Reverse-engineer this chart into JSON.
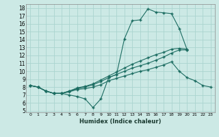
{
  "xlabel": "Humidex (Indice chaleur)",
  "bg_color": "#cce9e5",
  "grid_color": "#aad4cf",
  "line_color": "#1a6b60",
  "xlim": [
    -0.5,
    23.5
  ],
  "ylim": [
    4.8,
    18.5
  ],
  "xticks": [
    0,
    1,
    2,
    3,
    4,
    5,
    6,
    7,
    8,
    9,
    10,
    11,
    12,
    13,
    14,
    15,
    16,
    17,
    18,
    19,
    20,
    21,
    22,
    23
  ],
  "yticks": [
    5,
    6,
    7,
    8,
    9,
    10,
    11,
    12,
    13,
    14,
    15,
    16,
    17,
    18
  ],
  "line1_x": [
    0,
    1,
    2,
    3,
    4,
    5,
    6,
    7,
    8,
    9,
    10,
    11,
    12,
    13,
    14,
    15,
    16,
    17,
    18,
    19,
    20
  ],
  "line1_y": [
    8.2,
    8.0,
    7.5,
    7.2,
    7.2,
    7.0,
    6.8,
    6.5,
    5.4,
    6.5,
    9.2,
    9.6,
    14.1,
    16.4,
    16.5,
    17.9,
    17.5,
    17.4,
    17.3,
    15.4,
    12.7
  ],
  "line2_x": [
    0,
    1,
    2,
    3,
    4,
    5,
    6,
    7,
    8,
    9,
    10,
    11,
    12,
    13,
    14,
    15,
    16,
    17,
    18,
    19,
    20,
    21,
    22,
    23
  ],
  "line2_y": [
    8.2,
    8.0,
    7.5,
    7.2,
    7.2,
    7.4,
    7.7,
    7.8,
    8.0,
    8.3,
    8.8,
    9.1,
    9.4,
    9.7,
    10.0,
    10.2,
    10.5,
    10.8,
    11.2,
    10.0,
    9.2,
    8.8,
    8.2,
    8.0
  ],
  "line3_x": [
    0,
    1,
    2,
    3,
    4,
    5,
    6,
    7,
    8,
    9,
    10,
    11,
    12,
    13,
    14,
    15,
    16,
    17,
    18,
    19,
    20
  ],
  "line3_y": [
    8.2,
    8.0,
    7.5,
    7.2,
    7.2,
    7.5,
    7.8,
    8.0,
    8.3,
    8.7,
    9.2,
    9.6,
    10.0,
    10.4,
    10.7,
    11.0,
    11.4,
    11.8,
    12.3,
    12.7,
    12.7
  ],
  "line4_x": [
    0,
    1,
    2,
    3,
    4,
    5,
    6,
    7,
    8,
    9,
    10,
    11,
    12,
    13,
    14,
    15,
    16,
    17,
    18,
    19,
    20
  ],
  "line4_y": [
    8.2,
    8.0,
    7.5,
    7.2,
    7.2,
    7.5,
    7.9,
    8.1,
    8.4,
    8.9,
    9.4,
    9.9,
    10.4,
    10.9,
    11.3,
    11.7,
    12.1,
    12.4,
    12.8,
    12.9,
    12.8
  ]
}
